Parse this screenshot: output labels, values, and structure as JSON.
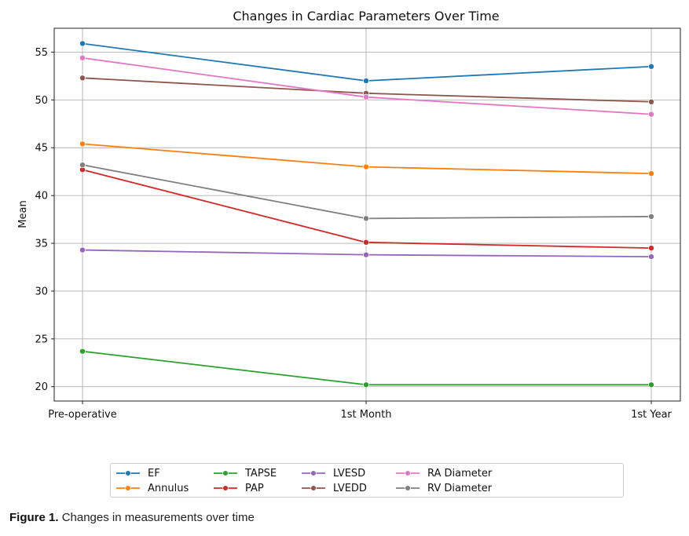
{
  "chart_data": {
    "type": "line",
    "title": "Changes in Cardiac Parameters Over Time",
    "xlabel": "",
    "ylabel": "Mean",
    "categories": [
      "Pre-operative",
      "1st Month",
      "1st Year"
    ],
    "ylim": [
      18.5,
      57.5
    ],
    "yticks": [
      20,
      25,
      30,
      35,
      40,
      45,
      50,
      55
    ],
    "grid": true,
    "legend_position": "bottom",
    "series": [
      {
        "name": "EF",
        "color": "#1f77b4",
        "values": [
          55.9,
          52.0,
          53.5
        ]
      },
      {
        "name": "Annulus",
        "color": "#ff7f0e",
        "values": [
          45.4,
          43.0,
          42.3
        ]
      },
      {
        "name": "TAPSE",
        "color": "#2ca02c",
        "values": [
          23.7,
          20.2,
          20.2
        ]
      },
      {
        "name": "PAP",
        "color": "#d62728",
        "values": [
          42.7,
          35.1,
          34.5
        ]
      },
      {
        "name": "LVESD",
        "color": "#9467bd",
        "values": [
          34.3,
          33.8,
          33.6
        ]
      },
      {
        "name": "LVEDD",
        "color": "#8c564b",
        "values": [
          52.3,
          50.7,
          49.8
        ]
      },
      {
        "name": "RA Diameter",
        "color": "#e377c2",
        "values": [
          54.4,
          50.3,
          48.5
        ]
      },
      {
        "name": "RV Diameter",
        "color": "#7f7f7f",
        "values": [
          43.2,
          37.6,
          37.8
        ]
      }
    ]
  },
  "caption": {
    "label": "Figure 1.",
    "text": "Changes in measurements over time"
  }
}
